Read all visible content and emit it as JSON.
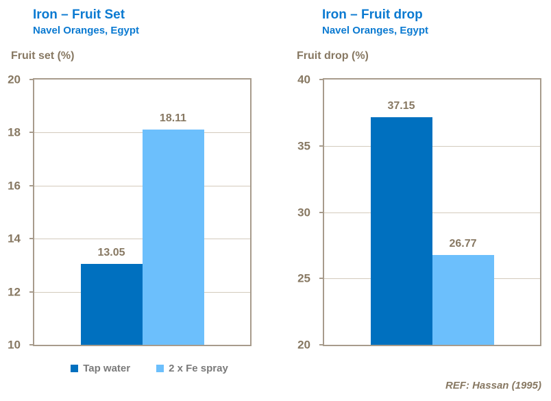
{
  "colors": {
    "title_blue": "#0b7ad1",
    "series": [
      "#0070bf",
      "#6cbffc"
    ],
    "axis_text": "#877862",
    "grid": "#d3cabc",
    "border": "#a79b8c",
    "legend_text": "#7a7a7a"
  },
  "legend": {
    "items": [
      {
        "label": "Tap water"
      },
      {
        "label": "2 x Fe spray"
      }
    ]
  },
  "footer": {
    "ref": "REF: Hassan (1995)"
  },
  "chart_data": [
    {
      "type": "bar",
      "title": "Iron – Fruit Set",
      "subtitle": "Navel Oranges, Egypt",
      "ylabel": "Fruit set (%)",
      "categories": [
        "Tap water",
        "2 x Fe spray"
      ],
      "values": [
        13.05,
        18.11
      ],
      "value_labels": [
        "13.05",
        "18.11"
      ],
      "ylim": [
        10,
        20
      ],
      "yticks": [
        10,
        12,
        14,
        16,
        18,
        20
      ],
      "grid": true,
      "legend_position": "bottom"
    },
    {
      "type": "bar",
      "title": "Iron – Fruit drop",
      "subtitle": "Navel Oranges, Egypt",
      "ylabel": "Fruit drop (%)",
      "categories": [
        "Tap water",
        "2 x Fe spray"
      ],
      "values": [
        37.15,
        26.77
      ],
      "value_labels": [
        "37.15",
        "26.77"
      ],
      "ylim": [
        20,
        40
      ],
      "yticks": [
        20,
        25,
        30,
        35,
        40
      ],
      "grid": true,
      "legend_position": "none"
    }
  ]
}
